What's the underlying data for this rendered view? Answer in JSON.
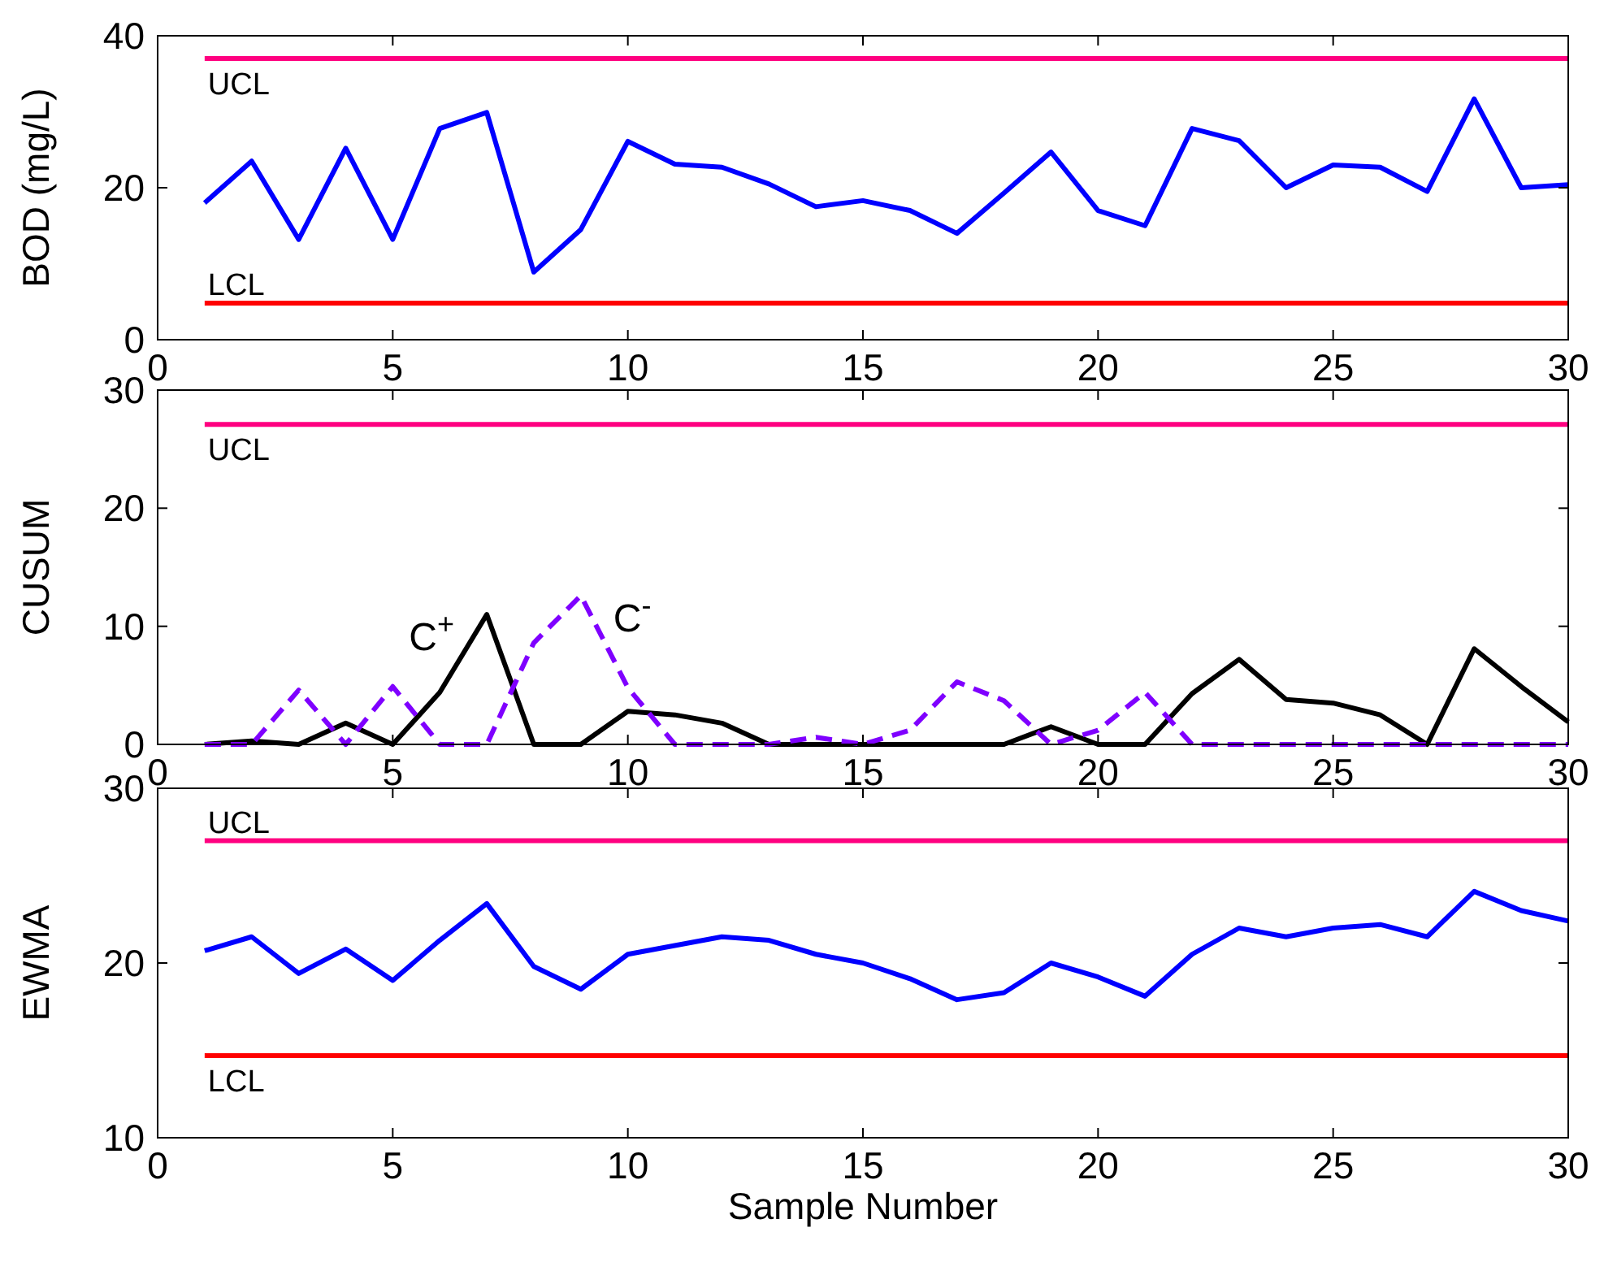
{
  "chart_data": [
    {
      "type": "line",
      "ylabel": "BOD (mg/L)",
      "x": [
        1,
        2,
        3,
        4,
        5,
        6,
        7,
        8,
        9,
        10,
        11,
        12,
        13,
        14,
        15,
        16,
        17,
        18,
        19,
        20,
        21,
        22,
        23,
        24,
        25,
        26,
        27,
        28,
        29,
        30
      ],
      "xlim": [
        0,
        30
      ],
      "xticks": [
        0,
        5,
        10,
        15,
        20,
        25,
        30
      ],
      "ylim": [
        0,
        40
      ],
      "yticks": [
        0,
        20,
        40
      ],
      "series": [
        {
          "color": "#0000ff",
          "values": [
            18,
            23.5,
            13.2,
            25.2,
            13.2,
            27.8,
            29.9,
            8.9,
            14.5,
            26.1,
            23.1,
            22.7,
            20.5,
            17.5,
            18.3,
            17,
            14,
            19.3,
            24.7,
            17,
            15,
            27.8,
            26.2,
            20,
            23,
            22.7,
            19.5,
            31.7,
            20,
            20.4
          ]
        }
      ],
      "ref_lines": [
        {
          "axis": "y",
          "value": 37,
          "label": "UCL",
          "color": "#ff0080"
        },
        {
          "axis": "y",
          "value": 4.8,
          "label": "LCL",
          "color": "#ff0000"
        }
      ]
    },
    {
      "type": "line",
      "ylabel": "CUSUM",
      "x": [
        1,
        2,
        3,
        4,
        5,
        6,
        7,
        8,
        9,
        10,
        11,
        12,
        13,
        14,
        15,
        16,
        17,
        18,
        19,
        20,
        21,
        22,
        23,
        24,
        25,
        26,
        27,
        28,
        29,
        30
      ],
      "xlim": [
        0,
        30
      ],
      "xticks": [
        0,
        5,
        10,
        15,
        20,
        25,
        30
      ],
      "ylim": [
        0,
        30
      ],
      "yticks": [
        0,
        10,
        20,
        30
      ],
      "series": [
        {
          "name": "C$^{+}$",
          "color": "#000000",
          "line_style": "solid",
          "values": [
            0,
            0.3,
            0,
            1.8,
            0,
            4.4,
            11,
            0,
            0,
            2.8,
            2.5,
            1.8,
            0,
            0,
            0,
            0,
            0,
            0,
            1.5,
            0,
            0,
            4.3,
            7.2,
            3.8,
            3.5,
            2.5,
            0,
            8.1,
            4.9,
            1.9
          ]
        },
        {
          "name": "C$^{-}$",
          "color": "#7f00ff",
          "line_style": "dashed",
          "values": [
            0,
            0,
            4.6,
            0,
            4.9,
            0,
            0,
            8.6,
            12.6,
            4.8,
            0,
            0,
            0,
            0.6,
            0,
            1.2,
            5.3,
            3.7,
            0,
            1.2,
            4.4,
            0,
            0,
            0,
            0,
            0,
            0,
            0,
            0,
            0
          ]
        }
      ],
      "ref_lines": [
        {
          "axis": "y",
          "value": 27.1,
          "label": "UCL",
          "color": "#ff0080"
        }
      ]
    },
    {
      "type": "line",
      "ylabel": "EWMA",
      "xlabel": "Sample Number",
      "x": [
        1,
        2,
        3,
        4,
        5,
        6,
        7,
        8,
        9,
        10,
        11,
        12,
        13,
        14,
        15,
        16,
        17,
        18,
        19,
        20,
        21,
        22,
        23,
        24,
        25,
        26,
        27,
        28,
        29,
        30
      ],
      "xlim": [
        0,
        30
      ],
      "xticks": [
        0,
        5,
        10,
        15,
        20,
        25,
        30
      ],
      "ylim": [
        10,
        30
      ],
      "yticks": [
        10,
        20,
        30
      ],
      "series": [
        {
          "color": "#0000ff",
          "values": [
            20.7,
            21.5,
            19.4,
            20.8,
            19,
            21.3,
            23.4,
            19.8,
            18.5,
            20.5,
            21,
            21.5,
            21.3,
            20.5,
            20,
            19.1,
            17.9,
            18.3,
            20,
            19.2,
            18.1,
            20.5,
            22,
            21.5,
            22,
            22.2,
            21.5,
            24.1,
            23,
            22.4
          ]
        }
      ],
      "ref_lines": [
        {
          "axis": "y",
          "value": 27,
          "label": "UCL",
          "color": "#ff0080"
        },
        {
          "axis": "y",
          "value": 14.7,
          "label": "LCL",
          "color": "#ff0000"
        }
      ]
    }
  ]
}
